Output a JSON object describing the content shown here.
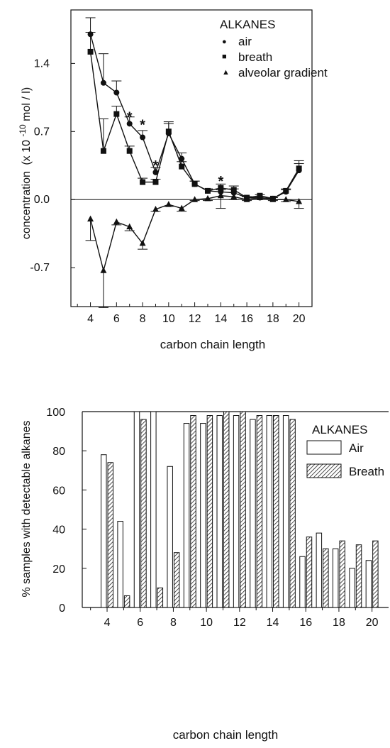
{
  "chart_data": [
    {
      "type": "line",
      "xlabel": "carbon chain length",
      "ylabel": "concentration",
      "ylabel_unit_main": "(x 10",
      "ylabel_unit_exp": "-10",
      "ylabel_unit_tail": "mol / l)",
      "xlim": [
        2.5,
        21
      ],
      "ylim": [
        -1.1,
        1.95
      ],
      "x_ticks": [
        4,
        6,
        8,
        10,
        12,
        14,
        16,
        18,
        20
      ],
      "y_ticks": [
        "1.4",
        "0.7",
        "0.0",
        "-0.7"
      ],
      "y_tick_values": [
        1.4,
        0.7,
        0.0,
        -0.7
      ],
      "legend": {
        "title": "ALKANES",
        "placement": "top-right",
        "markers": [
          "●",
          "■",
          "▲"
        ],
        "entries": [
          "air",
          "breath",
          "alveolar gradient"
        ]
      },
      "significance_marks": [
        {
          "x": 7,
          "y": 0.86,
          "label": "*"
        },
        {
          "x": 8,
          "y": 0.78,
          "label": "*"
        },
        {
          "x": 9,
          "y": 0.36,
          "label": "*"
        },
        {
          "x": 14,
          "y": 0.2,
          "label": "*"
        }
      ],
      "series": [
        {
          "marker": "circle",
          "x": [
            4,
            5,
            6,
            7,
            8,
            9,
            10,
            11,
            12,
            13,
            14,
            15,
            16,
            17,
            18,
            19,
            20
          ],
          "y": [
            1.7,
            1.2,
            1.1,
            0.78,
            0.64,
            0.28,
            0.68,
            0.42,
            0.16,
            0.09,
            0.08,
            0.07,
            0.02,
            0.02,
            0.01,
            0.08,
            0.3
          ],
          "err": [
            0.17,
            0.3,
            0.12,
            0.07,
            0.07,
            0.05,
            0.12,
            0.06,
            0.03,
            0.02,
            0.02,
            0.04,
            0.01,
            0.01,
            0.01,
            0.02,
            0.1
          ]
        },
        {
          "marker": "square",
          "x": [
            4,
            5,
            6,
            7,
            8,
            9,
            10,
            11,
            12,
            13,
            14,
            15,
            16,
            17,
            18,
            19,
            20
          ],
          "y": [
            1.52,
            0.5,
            0.88,
            0.5,
            0.18,
            0.18,
            0.7,
            0.34,
            0.16,
            0.09,
            0.12,
            0.1,
            0.02,
            0.04,
            0.01,
            0.09,
            0.32
          ],
          "err": [
            0.2,
            0.33,
            0.08,
            0.05,
            0.04,
            0.03,
            0.08,
            0.05,
            0.03,
            0.02,
            0.04,
            0.04,
            0.01,
            0.01,
            0.01,
            0.02,
            0.05
          ]
        },
        {
          "marker": "triangle",
          "x": [
            4,
            5,
            6,
            7,
            8,
            9,
            10,
            11,
            12,
            13,
            14,
            15,
            16,
            17,
            18,
            19,
            20
          ],
          "y": [
            -0.2,
            -0.73,
            -0.23,
            -0.28,
            -0.45,
            -0.1,
            -0.05,
            -0.09,
            0.0,
            0.01,
            0.04,
            0.03,
            0.0,
            0.02,
            0.0,
            0.0,
            -0.02
          ],
          "err": [
            0.22,
            0.38,
            0.03,
            0.04,
            0.06,
            0.02,
            0.02,
            0.03,
            0.01,
            0.02,
            0.13,
            0.03,
            0.01,
            0.01,
            0.01,
            0.02,
            0.07
          ]
        }
      ]
    },
    {
      "type": "bar",
      "xlabel": "carbon chain length",
      "ylabel": "% samples with detectable alkanes",
      "xlim": [
        2.5,
        21
      ],
      "ylim": [
        0,
        100
      ],
      "x_ticks": [
        4,
        6,
        8,
        10,
        12,
        14,
        16,
        18,
        20
      ],
      "y_ticks": [
        "100",
        "80",
        "60",
        "40",
        "20",
        "0"
      ],
      "y_tick_values": [
        100,
        80,
        60,
        40,
        20,
        0
      ],
      "legend": {
        "title": "ALKANES",
        "placement": "top-right",
        "entries": [
          "Air",
          "Breath"
        ]
      },
      "categories": [
        4,
        5,
        6,
        7,
        8,
        9,
        10,
        11,
        12,
        13,
        14,
        15,
        16,
        17,
        18,
        19,
        20
      ],
      "series": [
        {
          "name": "Air",
          "fill": "#ffffff",
          "values": [
            78,
            44,
            100,
            100,
            72,
            94,
            94,
            98,
            98,
            96,
            98,
            98,
            26,
            38,
            30,
            20,
            24
          ]
        },
        {
          "name": "Breath",
          "fill": "hatched",
          "values": [
            74,
            6,
            96,
            10,
            28,
            98,
            98,
            100,
            100,
            98,
            98,
            96,
            36,
            30,
            34,
            32,
            34
          ]
        }
      ]
    }
  ]
}
